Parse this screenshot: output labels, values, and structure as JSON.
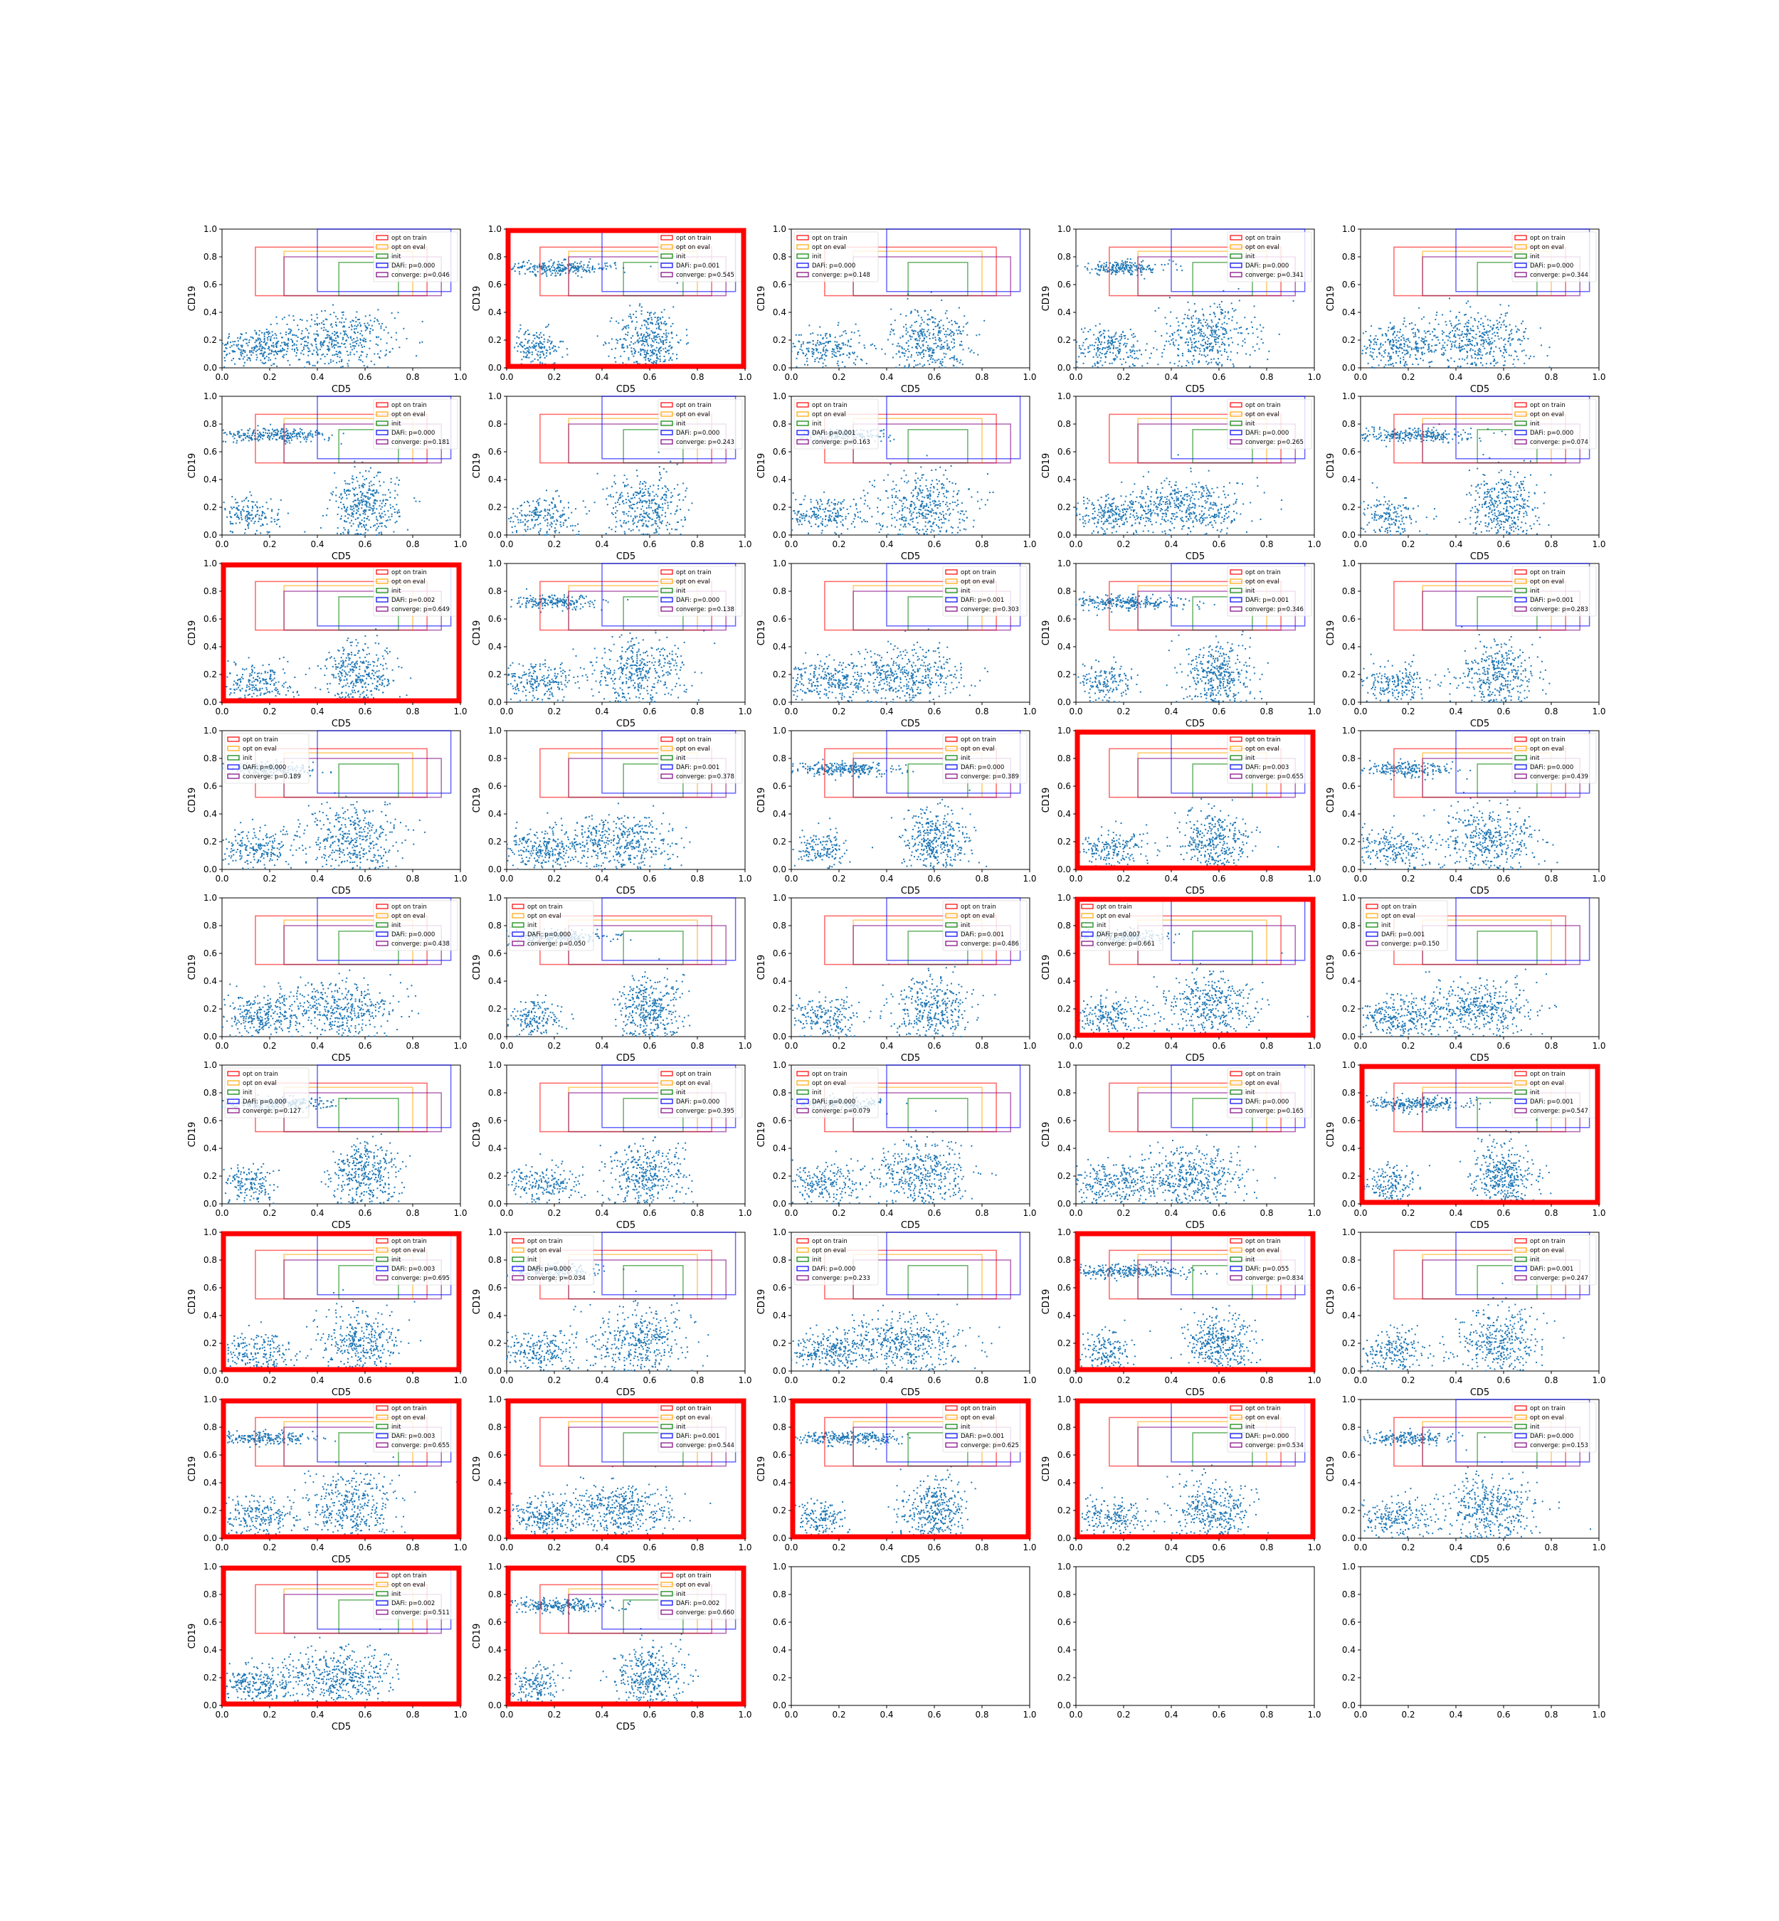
{
  "figure": {
    "rows": 9,
    "cols": 5,
    "xlabel": "CD5",
    "ylabel": "CD19",
    "xlim": [
      0,
      1
    ],
    "ylim": [
      0,
      1
    ],
    "ticks": [
      "0.0",
      "0.2",
      "0.4",
      "0.6",
      "0.8",
      "1.0"
    ],
    "tick_values": [
      0,
      0.2,
      0.4,
      0.6,
      0.8,
      1.0
    ],
    "colors": {
      "scatter": "#1f77b4",
      "opt_on_train": "#ff0000",
      "opt_on_eval": "#ffa500",
      "init": "#008000",
      "DAFi": "#0000ff",
      "converge": "#800080",
      "highlight_border": "#ff0000"
    },
    "legend": {
      "position": "upper right",
      "entries": [
        "opt on train",
        "opt on eval",
        "init",
        "DAFi: p={dafi}",
        "converge: p={conv}"
      ]
    }
  },
  "chart_data": {
    "type": "scatter",
    "gates": {
      "opt_on_train": {
        "x": [
          0.14,
          0.86
        ],
        "y": [
          0.52,
          0.87
        ]
      },
      "opt_on_eval": {
        "x": [
          0.26,
          0.8
        ],
        "y": [
          0.52,
          0.84
        ]
      },
      "init": {
        "x": [
          0.49,
          0.74
        ],
        "y": [
          0.52,
          0.76
        ]
      },
      "DAFi": {
        "x": [
          0.4,
          0.96
        ],
        "y": [
          0.55,
          1.0
        ]
      },
      "converge": {
        "x": [
          0.26,
          0.92
        ],
        "y": [
          0.52,
          0.8
        ]
      }
    },
    "panels": [
      {
        "dafi": "0.000",
        "conv": "0.046",
        "highlight": false,
        "legend": "right"
      },
      {
        "dafi": "0.001",
        "conv": "0.545",
        "highlight": true,
        "legend": "right"
      },
      {
        "dafi": "0.000",
        "conv": "0.148",
        "highlight": false,
        "legend": "left"
      },
      {
        "dafi": "0.000",
        "conv": "0.341",
        "highlight": false,
        "legend": "right"
      },
      {
        "dafi": "0.000",
        "conv": "0.344",
        "highlight": false,
        "legend": "right"
      },
      {
        "dafi": "0.000",
        "conv": "0.181",
        "highlight": false,
        "legend": "right"
      },
      {
        "dafi": "0.000",
        "conv": "0.243",
        "highlight": false,
        "legend": "right"
      },
      {
        "dafi": "0.001",
        "conv": "0.163",
        "highlight": false,
        "legend": "left"
      },
      {
        "dafi": "0.000",
        "conv": "0.265",
        "highlight": false,
        "legend": "right"
      },
      {
        "dafi": "0.000",
        "conv": "0.074",
        "highlight": false,
        "legend": "right"
      },
      {
        "dafi": "0.002",
        "conv": "0.649",
        "highlight": true,
        "legend": "right"
      },
      {
        "dafi": "0.000",
        "conv": "0.138",
        "highlight": false,
        "legend": "right"
      },
      {
        "dafi": "0.001",
        "conv": "0.303",
        "highlight": false,
        "legend": "right"
      },
      {
        "dafi": "0.001",
        "conv": "0.346",
        "highlight": false,
        "legend": "right"
      },
      {
        "dafi": "0.001",
        "conv": "0.283",
        "highlight": false,
        "legend": "right"
      },
      {
        "dafi": "0.000",
        "conv": "0.189",
        "highlight": false,
        "legend": "left"
      },
      {
        "dafi": "0.001",
        "conv": "0.378",
        "highlight": false,
        "legend": "right"
      },
      {
        "dafi": "0.000",
        "conv": "0.389",
        "highlight": false,
        "legend": "right"
      },
      {
        "dafi": "0.003",
        "conv": "0.655",
        "highlight": true,
        "legend": "right"
      },
      {
        "dafi": "0.000",
        "conv": "0.439",
        "highlight": false,
        "legend": "right"
      },
      {
        "dafi": "0.000",
        "conv": "0.438",
        "highlight": false,
        "legend": "right"
      },
      {
        "dafi": "0.000",
        "conv": "0.050",
        "highlight": false,
        "legend": "left"
      },
      {
        "dafi": "0.001",
        "conv": "0.486",
        "highlight": false,
        "legend": "right"
      },
      {
        "dafi": "0.007",
        "conv": "0.661",
        "highlight": true,
        "legend": "left"
      },
      {
        "dafi": "0.001",
        "conv": "0.150",
        "highlight": false,
        "legend": "left"
      },
      {
        "dafi": "0.000",
        "conv": "0.127",
        "highlight": false,
        "legend": "left"
      },
      {
        "dafi": "0.000",
        "conv": "0.395",
        "highlight": false,
        "legend": "right"
      },
      {
        "dafi": "0.000",
        "conv": "0.079",
        "highlight": false,
        "legend": "left"
      },
      {
        "dafi": "0.000",
        "conv": "0.165",
        "highlight": false,
        "legend": "right"
      },
      {
        "dafi": "0.001",
        "conv": "0.547",
        "highlight": true,
        "legend": "right"
      },
      {
        "dafi": "0.003",
        "conv": "0.695",
        "highlight": true,
        "legend": "right"
      },
      {
        "dafi": "0.000",
        "conv": "0.034",
        "highlight": false,
        "legend": "left"
      },
      {
        "dafi": "0.000",
        "conv": "0.233",
        "highlight": false,
        "legend": "left"
      },
      {
        "dafi": "0.055",
        "conv": "0.834",
        "highlight": true,
        "legend": "right"
      },
      {
        "dafi": "0.001",
        "conv": "0.247",
        "highlight": false,
        "legend": "right"
      },
      {
        "dafi": "0.003",
        "conv": "0.655",
        "highlight": true,
        "legend": "right"
      },
      {
        "dafi": "0.001",
        "conv": "0.544",
        "highlight": true,
        "legend": "right"
      },
      {
        "dafi": "0.001",
        "conv": "0.625",
        "highlight": true,
        "legend": "right"
      },
      {
        "dafi": "0.000",
        "conv": "0.534",
        "highlight": true,
        "legend": "right"
      },
      {
        "dafi": "0.000",
        "conv": "0.153",
        "highlight": false,
        "legend": "right"
      },
      {
        "dafi": "0.002",
        "conv": "0.511",
        "highlight": true,
        "legend": "right"
      },
      {
        "dafi": "0.002",
        "conv": "0.660",
        "highlight": true,
        "legend": "right"
      },
      {
        "empty": true
      },
      {
        "empty": true
      },
      {
        "empty": true
      }
    ]
  }
}
